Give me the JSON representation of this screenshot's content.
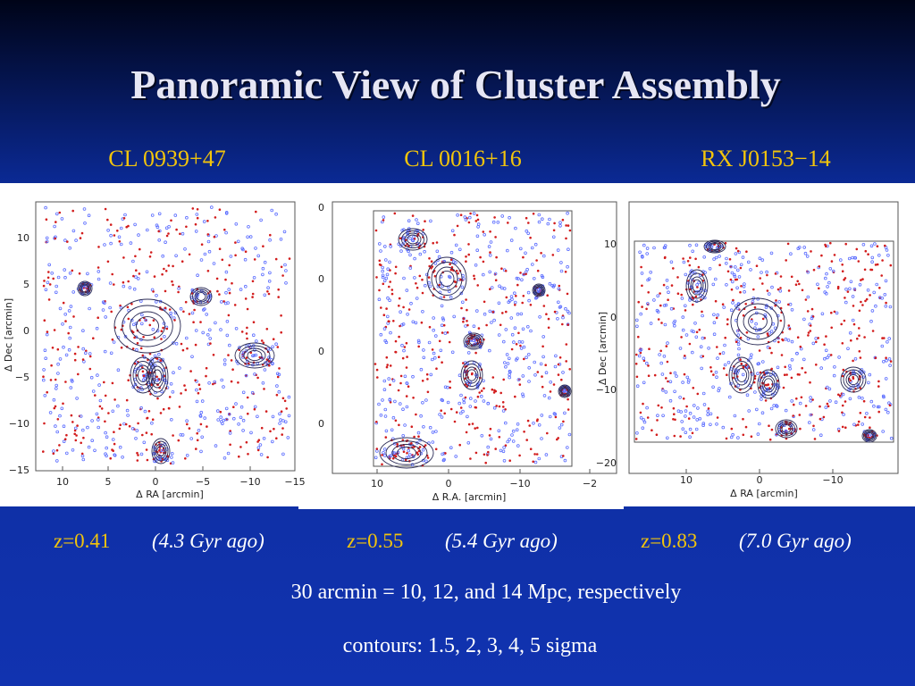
{
  "title": "Panoramic View of Cluster Assembly",
  "panels": [
    {
      "name": "CL 0939+47",
      "xlabel": "Δ RA [arcmin]",
      "ylabel": "Δ Dec [arcmin]",
      "xticks": [
        "10",
        "5",
        "0",
        "−5",
        "−10",
        "−15"
      ],
      "yticks": [
        "10",
        "5",
        "0",
        "−5",
        "−10",
        "−15"
      ],
      "redshift": "z=0.41",
      "age": "(4.3 Gyr ago)"
    },
    {
      "name": "CL 0016+16",
      "xlabel": "Δ R.A. [arcmin]",
      "xticks": [
        "10",
        "0",
        "−10",
        "−2"
      ],
      "yticks": [
        "0",
        "0",
        "0",
        "0"
      ],
      "redshift": "z=0.55",
      "age": "(5.4 Gyr ago)"
    },
    {
      "name": "RX J0153−14",
      "xlabel": "Δ RA [arcmin]",
      "ylabel": "Δ Dec [arcmin]",
      "xticks": [
        "10",
        "0",
        "−10"
      ],
      "yticks": [
        "10",
        "0",
        "−10",
        "−20"
      ],
      "redshift": "z=0.83",
      "age": "(7.0 Gyr ago)"
    }
  ],
  "notes": [
    "30 arcmin = 10, 12, and 14 Mpc, respectively",
    "contours: 1.5, 2, 3, 4, 5 sigma"
  ]
}
